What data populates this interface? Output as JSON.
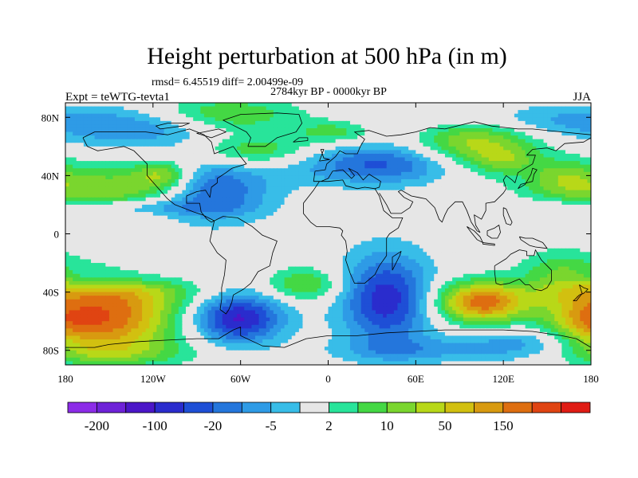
{
  "chart_data": {
    "type": "heatmap",
    "title": "Height perturbation at 500 hPa (in m)",
    "stats_text": "rmsd= 6.45519 diff= 2.00499e-09",
    "period": "2784kyr BP - 0000kyr BP",
    "experiment": "Expt = teWTG-tevta1",
    "season": "JJA",
    "x_range": [
      -180,
      180
    ],
    "y_range": [
      -90,
      90
    ],
    "x_ticks": [
      {
        "value": -180,
        "label": "180"
      },
      {
        "value": -120,
        "label": "120W"
      },
      {
        "value": -60,
        "label": "60W"
      },
      {
        "value": 0,
        "label": "0"
      },
      {
        "value": 60,
        "label": "60E"
      },
      {
        "value": 120,
        "label": "120E"
      },
      {
        "value": 180,
        "label": "180"
      }
    ],
    "y_ticks": [
      {
        "value": 80,
        "label": "80N"
      },
      {
        "value": 40,
        "label": "40N"
      },
      {
        "value": 0,
        "label": "0"
      },
      {
        "value": -40,
        "label": "40S"
      },
      {
        "value": -80,
        "label": "80S"
      }
    ],
    "colorbar": {
      "colors": [
        "#8c2ce8",
        "#6e22d8",
        "#4b16c8",
        "#2a2ccd",
        "#1e4fd6",
        "#2476dc",
        "#2e9be6",
        "#38bde8",
        "#e6e6e6",
        "#28e49a",
        "#44d844",
        "#7ad62e",
        "#b8d818",
        "#d2c010",
        "#d89a10",
        "#de6e10",
        "#e04412",
        "#e01c14"
      ],
      "labels": [
        {
          "boundary": 1,
          "label": "-200"
        },
        {
          "boundary": 3,
          "label": "-100"
        },
        {
          "boundary": 5,
          "label": "-20"
        },
        {
          "boundary": 7,
          "label": "-5"
        },
        {
          "boundary": 9,
          "label": "2"
        },
        {
          "boundary": 11,
          "label": "10"
        },
        {
          "boundary": 13,
          "label": "50"
        },
        {
          "boundary": 15,
          "label": "150"
        }
      ]
    },
    "field_blobs": [
      {
        "lon": -150,
        "lat": 30,
        "slon": 40,
        "slat": 12,
        "amp": 6
      },
      {
        "lon": -113,
        "lat": 40,
        "slon": 14,
        "slat": 7,
        "amp": 6
      },
      {
        "lon": -50,
        "lat": 57,
        "slon": 30,
        "slat": 8,
        "amp": 5
      },
      {
        "lon": -70,
        "lat": 82,
        "slon": 35,
        "slat": 8,
        "amp": 5
      },
      {
        "lon": 5,
        "lat": 70,
        "slon": 20,
        "slat": 6,
        "amp": 4
      },
      {
        "lon": 100,
        "lat": 62,
        "slon": 30,
        "slat": 15,
        "amp": 8
      },
      {
        "lon": 120,
        "lat": 50,
        "slon": 14,
        "slat": 6,
        "amp": 3
      },
      {
        "lon": 160,
        "lat": 38,
        "slon": 18,
        "slat": 10,
        "amp": 4
      },
      {
        "lon": -80,
        "lat": 30,
        "slon": 28,
        "slat": 15,
        "amp": -7
      },
      {
        "lon": -130,
        "lat": 72,
        "slon": 40,
        "slat": 10,
        "amp": -4
      },
      {
        "lon": 40,
        "lat": 48,
        "slon": 45,
        "slat": 10,
        "amp": -7
      },
      {
        "lon": 120,
        "lat": 78,
        "slon": 60,
        "slat": 8,
        "amp": -4
      },
      {
        "lon": -150,
        "lat": 18,
        "slon": 50,
        "slat": 4,
        "amp": -4
      },
      {
        "lon": -155,
        "lat": -60,
        "slon": 35,
        "slat": 16,
        "amp": 12
      },
      {
        "lon": -140,
        "lat": -38,
        "slon": 40,
        "slat": 10,
        "amp": 5
      },
      {
        "lon": -15,
        "lat": -35,
        "slon": 18,
        "slat": 8,
        "amp": 5
      },
      {
        "lon": 105,
        "lat": -47,
        "slon": 22,
        "slat": 10,
        "amp": 12
      },
      {
        "lon": 160,
        "lat": -30,
        "slon": 20,
        "slat": 12,
        "amp": 5
      },
      {
        "lon": 175,
        "lat": -60,
        "slon": 15,
        "slat": 10,
        "amp": 3
      },
      {
        "lon": -145,
        "lat": -82,
        "slon": 40,
        "slat": 6,
        "amp": 3
      },
      {
        "lon": -62,
        "lat": -58,
        "slon": 22,
        "slat": 12,
        "amp": -10
      },
      {
        "lon": 40,
        "lat": -45,
        "slon": 22,
        "slat": 22,
        "amp": -9
      },
      {
        "lon": 135,
        "lat": -75,
        "slon": 30,
        "slat": 8,
        "amp": -4
      },
      {
        "lon": -150,
        "lat": -30,
        "slon": 45,
        "slat": 5,
        "amp": -3
      },
      {
        "lon": 60,
        "lat": -80,
        "slon": 40,
        "slat": 6,
        "amp": -3
      }
    ]
  }
}
